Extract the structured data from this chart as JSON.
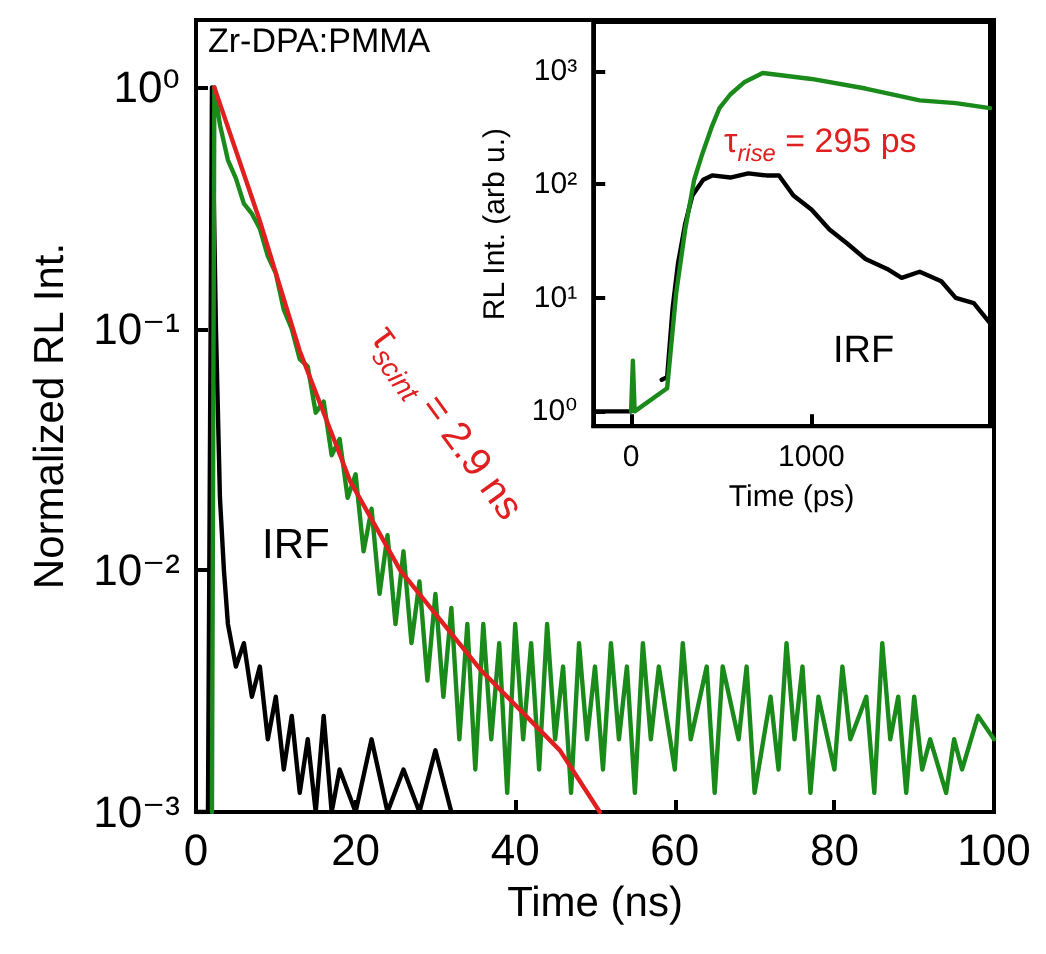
{
  "chart_data": [
    {
      "type": "line",
      "xlabel": "Time (ns)",
      "ylabel": "Normalized RL Int.",
      "log": "y",
      "grid": false,
      "marker": "none",
      "xlim": [
        0,
        100
      ],
      "xticks": [
        0,
        20,
        40,
        60,
        80,
        100
      ],
      "ylim": [
        0.001,
        1.9
      ],
      "yticks": [
        {
          "value": 0.001,
          "label": "10⁻³"
        },
        {
          "value": 0.01,
          "label": "10⁻²"
        },
        {
          "value": 0.1,
          "label": "10⁻¹"
        },
        {
          "value": 1,
          "label": "10⁰"
        }
      ],
      "annotations": [
        "Zr-DPA:PMMA",
        "τ$_{scint}$ = 2.9 ns",
        "IRF"
      ],
      "series": [
        {
          "color": "#000000",
          "x": [
            0,
            1.5,
            2,
            2.5,
            3,
            3.5,
            4,
            5,
            6,
            7,
            8,
            9,
            10,
            11,
            12,
            13,
            14,
            15,
            16,
            17,
            18,
            20,
            22,
            24,
            26,
            28,
            30,
            32
          ],
          "values": [
            0.001,
            0.001,
            1.0,
            0.1,
            0.02,
            0.01,
            0.006,
            0.004,
            0.005,
            0.003,
            0.004,
            0.002,
            0.003,
            0.0015,
            0.0025,
            0.0012,
            0.002,
            0.001,
            0.0025,
            0.001,
            0.0015,
            0.001,
            0.002,
            0.001,
            0.0015,
            0.001,
            0.0018,
            0.001
          ]
        },
        {
          "color": "#1a8a1a",
          "x": [
            2,
            2.3,
            3,
            4,
            5,
            6,
            7,
            8,
            9,
            10,
            11,
            12,
            13,
            14,
            15,
            16,
            17,
            18,
            19,
            20,
            21,
            22,
            23,
            24,
            25,
            26,
            27,
            28,
            29,
            30,
            31,
            32,
            33,
            34,
            35,
            36,
            37,
            38,
            39,
            40,
            41,
            42,
            43,
            44,
            45,
            46,
            47,
            48,
            49,
            50,
            51,
            52,
            53,
            54,
            55,
            56,
            57,
            58,
            60,
            61,
            62,
            64,
            65,
            66,
            68,
            69,
            70,
            72,
            73,
            74,
            75,
            76,
            77,
            78,
            80,
            81,
            82,
            84,
            85,
            86,
            87,
            88,
            89,
            90,
            91,
            92,
            94,
            95,
            96,
            98,
            100
          ],
          "values": [
            0.001,
            1.0,
            0.7,
            0.5,
            0.42,
            0.33,
            0.3,
            0.26,
            0.2,
            0.17,
            0.12,
            0.1,
            0.075,
            0.07,
            0.045,
            0.05,
            0.03,
            0.035,
            0.02,
            0.025,
            0.012,
            0.018,
            0.008,
            0.014,
            0.006,
            0.012,
            0.005,
            0.009,
            0.0035,
            0.008,
            0.003,
            0.007,
            0.002,
            0.006,
            0.0015,
            0.006,
            0.002,
            0.005,
            0.0012,
            0.006,
            0.002,
            0.005,
            0.0015,
            0.006,
            0.002,
            0.004,
            0.0012,
            0.005,
            0.002,
            0.004,
            0.0015,
            0.005,
            0.002,
            0.004,
            0.0012,
            0.005,
            0.002,
            0.004,
            0.0015,
            0.005,
            0.002,
            0.004,
            0.0012,
            0.004,
            0.002,
            0.004,
            0.0012,
            0.003,
            0.0015,
            0.005,
            0.002,
            0.004,
            0.0012,
            0.003,
            0.0015,
            0.004,
            0.002,
            0.003,
            0.0012,
            0.005,
            0.002,
            0.003,
            0.0012,
            0.003,
            0.0015,
            0.002,
            0.0012,
            0.002,
            0.0015,
            0.0025,
            0.002
          ]
        },
        {
          "color": "#e02020",
          "x": [
            2.3,
            8,
            13,
            19.3,
            25.6,
            35.6,
            45.6,
            50.6
          ],
          "values": [
            1.0,
            0.28,
            0.081,
            0.0235,
            0.01,
            0.0039,
            0.0018,
            0.001
          ]
        }
      ]
    },
    {
      "type": "line",
      "xlabel": "Time (ps)",
      "ylabel": "RL Int. (arb u.)",
      "log": "y",
      "grid": false,
      "marker": "none",
      "xlim": [
        -210,
        1990
      ],
      "xticks": [
        0,
        1000
      ],
      "ylim": [
        0.74,
        2700
      ],
      "yticks": [
        {
          "value": 1,
          "label": "10⁰"
        },
        {
          "value": 10,
          "label": "10¹"
        },
        {
          "value": 100,
          "label": "10²"
        },
        {
          "value": 1000,
          "label": "10³"
        }
      ],
      "annotations": [
        "τ$_{rise}$ = 295 ps",
        "IRF"
      ],
      "series": [
        {
          "color": "#000000",
          "x": [
            -200,
            0,
            100,
            170,
            200,
            230,
            260,
            300,
            340,
            400,
            450,
            550,
            650,
            750,
            820,
            900,
            1000,
            1100,
            1200,
            1300,
            1420,
            1500,
            1600,
            1720,
            1800,
            1900,
            1990
          ],
          "values": [
            1,
            1,
            null,
            1.9,
            2,
            8,
            20,
            45,
            80,
            110,
            120,
            115,
            125,
            120,
            120,
            80,
            60,
            40,
            30,
            22,
            18,
            15,
            17,
            14,
            10,
            9,
            6
          ]
        },
        {
          "color": "#1a8a1a",
          "x": [
            0,
            10,
            20,
            200,
            250,
            300,
            350,
            390,
            450,
            490,
            550,
            630,
            730,
            1000,
            1300,
            1600,
            1800,
            1990
          ],
          "values": [
            1,
            2.8,
            1,
            1.6,
            11,
            40,
            110,
            176,
            330,
            470,
            620,
            800,
            960,
            850,
            700,
            550,
            520,
            470
          ]
        }
      ]
    }
  ]
}
